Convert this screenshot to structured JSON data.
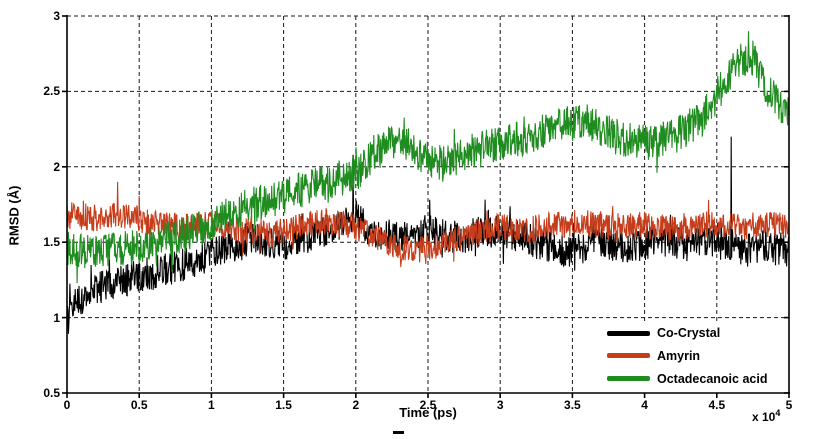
{
  "chart_data": {
    "type": "line",
    "title": "",
    "xlabel": "Time (ps)",
    "ylabel": "RMSD (Å)",
    "x_axis_offset_label": "x 10",
    "x_axis_offset_exponent": "4",
    "xlim": [
      0,
      50000
    ],
    "ylim": [
      0.5,
      3
    ],
    "x_units_scale": "1e4",
    "x_tick_values": [
      0,
      0.5,
      1,
      1.5,
      2,
      2.5,
      3,
      3.5,
      4,
      4.5,
      5
    ],
    "x_tick_labels": [
      "0",
      "0.5",
      "1",
      "1.5",
      "2",
      "2.5",
      "3",
      "3.5",
      "4",
      "4.5",
      "5"
    ],
    "y_tick_values": [
      0.5,
      1,
      1.5,
      2,
      2.5,
      3
    ],
    "y_tick_labels": [
      "0.5",
      "1",
      "1.5",
      "2",
      "2.5",
      "3"
    ],
    "grid": "dashed",
    "legend_position": "lower-right",
    "series": [
      {
        "name": "Co-Crystal",
        "color": "#000000",
        "noise_amplitude": 0.11,
        "trend": [
          [
            0,
            0.98
          ],
          [
            0.05,
            1.08
          ],
          [
            0.15,
            1.17
          ],
          [
            0.3,
            1.22
          ],
          [
            0.5,
            1.28
          ],
          [
            0.7,
            1.32
          ],
          [
            0.9,
            1.38
          ],
          [
            1.1,
            1.45
          ],
          [
            1.3,
            1.52
          ],
          [
            1.5,
            1.48
          ],
          [
            1.7,
            1.55
          ],
          [
            1.9,
            1.62
          ],
          [
            2.0,
            1.68
          ],
          [
            2.1,
            1.58
          ],
          [
            2.3,
            1.52
          ],
          [
            2.5,
            1.58
          ],
          [
            2.7,
            1.52
          ],
          [
            2.9,
            1.58
          ],
          [
            3.1,
            1.55
          ],
          [
            3.3,
            1.48
          ],
          [
            3.5,
            1.44
          ],
          [
            3.7,
            1.5
          ],
          [
            3.9,
            1.46
          ],
          [
            4.1,
            1.52
          ],
          [
            4.3,
            1.48
          ],
          [
            4.5,
            1.52
          ],
          [
            4.7,
            1.44
          ],
          [
            4.85,
            1.48
          ],
          [
            5,
            1.44
          ]
        ],
        "spikes": [
          [
            1.98,
            2.08
          ],
          [
            4.6,
            2.2
          ]
        ]
      },
      {
        "name": "Amyrin",
        "color": "#C63D1C",
        "noise_amplitude": 0.09,
        "trend": [
          [
            0,
            1.68
          ],
          [
            0.2,
            1.66
          ],
          [
            0.4,
            1.68
          ],
          [
            0.6,
            1.62
          ],
          [
            0.8,
            1.6
          ],
          [
            1.0,
            1.63
          ],
          [
            1.2,
            1.58
          ],
          [
            1.4,
            1.55
          ],
          [
            1.6,
            1.6
          ],
          [
            1.8,
            1.64
          ],
          [
            2.0,
            1.6
          ],
          [
            2.2,
            1.5
          ],
          [
            2.4,
            1.44
          ],
          [
            2.6,
            1.49
          ],
          [
            2.8,
            1.55
          ],
          [
            3.0,
            1.6
          ],
          [
            3.2,
            1.58
          ],
          [
            3.4,
            1.62
          ],
          [
            3.6,
            1.63
          ],
          [
            3.8,
            1.6
          ],
          [
            4.0,
            1.62
          ],
          [
            4.2,
            1.58
          ],
          [
            4.4,
            1.62
          ],
          [
            4.6,
            1.6
          ],
          [
            4.8,
            1.62
          ],
          [
            5,
            1.6
          ]
        ],
        "spikes": [
          [
            0.35,
            1.9
          ]
        ]
      },
      {
        "name": "Octadecanoic acid",
        "color": "#1F8C1F",
        "noise_amplitude": 0.12,
        "trend": [
          [
            0,
            1.45
          ],
          [
            0.2,
            1.42
          ],
          [
            0.4,
            1.46
          ],
          [
            0.6,
            1.5
          ],
          [
            0.8,
            1.55
          ],
          [
            1.0,
            1.62
          ],
          [
            1.2,
            1.72
          ],
          [
            1.4,
            1.78
          ],
          [
            1.6,
            1.84
          ],
          [
            1.8,
            1.9
          ],
          [
            2.0,
            1.95
          ],
          [
            2.15,
            2.12
          ],
          [
            2.3,
            2.18
          ],
          [
            2.45,
            2.08
          ],
          [
            2.6,
            2.02
          ],
          [
            2.8,
            2.1
          ],
          [
            3.0,
            2.15
          ],
          [
            3.2,
            2.2
          ],
          [
            3.4,
            2.28
          ],
          [
            3.6,
            2.3
          ],
          [
            3.8,
            2.2
          ],
          [
            4.0,
            2.16
          ],
          [
            4.2,
            2.2
          ],
          [
            4.4,
            2.32
          ],
          [
            4.55,
            2.55
          ],
          [
            4.65,
            2.7
          ],
          [
            4.75,
            2.72
          ],
          [
            4.85,
            2.5
          ],
          [
            4.95,
            2.38
          ],
          [
            5,
            2.35
          ]
        ],
        "spikes": [
          [
            4.72,
            2.9
          ]
        ]
      }
    ]
  }
}
